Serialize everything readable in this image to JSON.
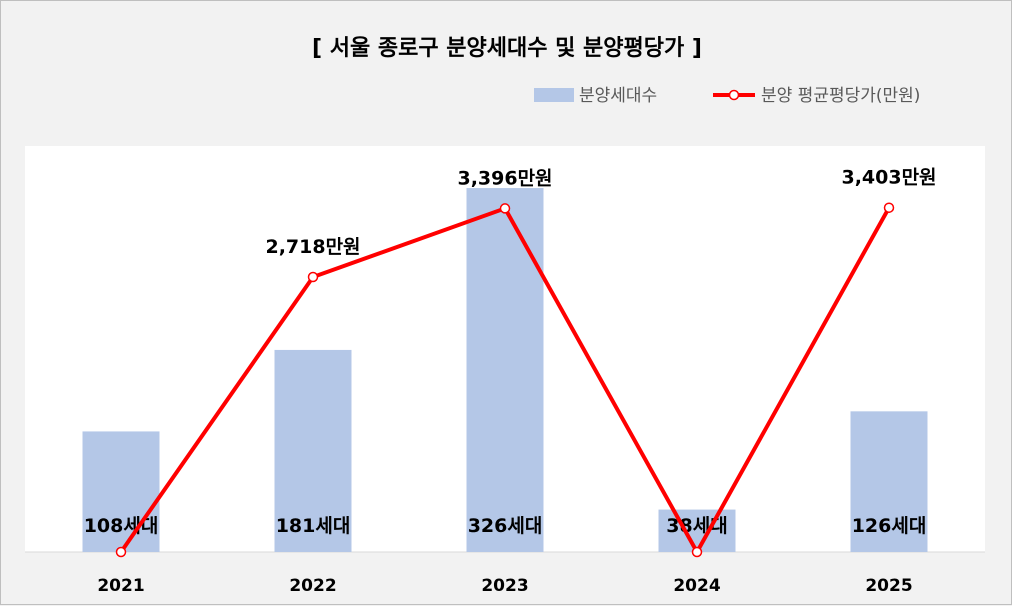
{
  "chart_data": {
    "type": "bar",
    "title": "[ 서울 종로구 분양세대수 및 분양평당가 ]",
    "categories": [
      "2021",
      "2022",
      "2023",
      "2024",
      "2025"
    ],
    "series": [
      {
        "name": "분양세대수",
        "type": "bar",
        "values": [
          108,
          181,
          326,
          38,
          126
        ],
        "labels": [
          "108세대",
          "181세대",
          "326세대",
          "38세대",
          "126세대"
        ],
        "color": "#b4c7e7"
      },
      {
        "name": "분양 평균평당가(만원)",
        "type": "line",
        "values": [
          0,
          2718,
          3396,
          0,
          3403
        ],
        "labels": [
          "",
          "2,718만원",
          "3,396만원",
          "",
          "3,403만원"
        ],
        "color": "#ff0000"
      }
    ],
    "legend_position": "top-right",
    "grid": false
  }
}
